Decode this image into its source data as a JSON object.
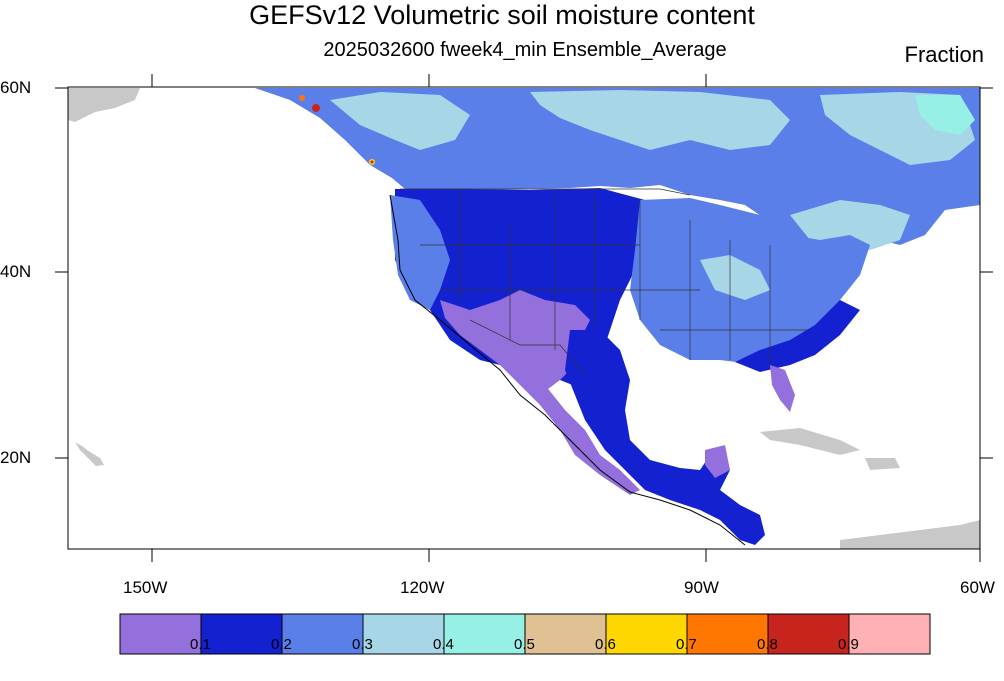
{
  "map": {
    "title": "GEFSv12 Volumetric soil moisture content",
    "subtitle": "2025032600 fweek4_min Ensemble_Average",
    "units": "Fraction",
    "lat_labels": [
      "60N",
      "40N",
      "20N"
    ],
    "lon_labels": [
      "150W",
      "120W",
      "90W",
      "60W"
    ],
    "missing_color": "#c8c8c8",
    "land_outline_color": "#000000"
  },
  "colorbar": {
    "colors": [
      "#9370db",
      "#1421d0",
      "#5b7fe9",
      "#a7d7e7",
      "#96f0e6",
      "#dfc194",
      "#ffd700",
      "#ff7700",
      "#c8241e",
      "#ffb0b4"
    ],
    "labels": [
      "0.1",
      "0.2",
      "0.3",
      "0.4",
      "0.5",
      "0.6",
      "0.7",
      "0.8",
      "0.9"
    ]
  }
}
